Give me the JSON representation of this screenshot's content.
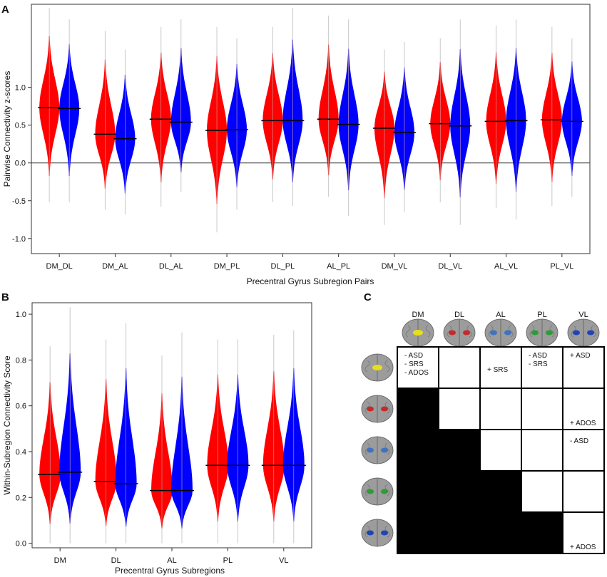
{
  "chart_data": [
    {
      "panel": "A",
      "type": "violin",
      "title": "",
      "xlabel": "Precentral Gyrus Subregion Pairs",
      "ylabel": "Pairwise Connectivity z-scores",
      "ylim": [
        -1.2,
        2.1
      ],
      "yticks": [
        "-1.0",
        "-0.5",
        "0.0",
        "0.5",
        "1.0"
      ],
      "ytick_values": [
        -1.0,
        -0.5,
        0.0,
        0.5,
        1.0
      ],
      "reference_line": 0.0,
      "categories": [
        "DM_DL",
        "DM_AL",
        "DL_AL",
        "DM_PL",
        "DL_PL",
        "AL_PL",
        "DM_VL",
        "DL_VL",
        "AL_VL",
        "PL_VL"
      ],
      "series": [
        {
          "name": "red",
          "color": "#ff0000",
          "medians": [
            0.73,
            0.38,
            0.58,
            0.43,
            0.56,
            0.58,
            0.46,
            0.52,
            0.55,
            0.57
          ],
          "mins": [
            -0.52,
            -0.62,
            -0.58,
            -0.92,
            -0.52,
            -0.45,
            -0.82,
            -0.52,
            -0.6,
            -0.57
          ],
          "maxs": [
            2.05,
            1.75,
            1.8,
            1.8,
            1.8,
            1.95,
            1.5,
            1.65,
            1.82,
            1.8
          ]
        },
        {
          "name": "blue",
          "color": "#0000ff",
          "medians": [
            0.72,
            0.32,
            0.54,
            0.44,
            0.56,
            0.51,
            0.4,
            0.49,
            0.56,
            0.55
          ],
          "mins": [
            -0.52,
            -0.68,
            -0.38,
            -0.62,
            -0.57,
            -0.7,
            -0.65,
            -0.82,
            -0.75,
            -0.45
          ],
          "maxs": [
            1.9,
            1.5,
            1.9,
            1.65,
            2.05,
            1.9,
            1.6,
            1.9,
            1.9,
            1.65
          ]
        }
      ]
    },
    {
      "panel": "B",
      "type": "violin",
      "title": "",
      "xlabel": "Precentral Gyrus Subregions",
      "ylabel": "Within-Subregion Connectivity Score",
      "ylim": [
        -0.02,
        1.05
      ],
      "yticks": [
        "0.0",
        "0.2",
        "0.4",
        "0.6",
        "0.8",
        "1.0"
      ],
      "ytick_values": [
        0.0,
        0.2,
        0.4,
        0.6,
        0.8,
        1.0
      ],
      "categories": [
        "DM",
        "DL",
        "AL",
        "PL",
        "VL"
      ],
      "series": [
        {
          "name": "red",
          "color": "#ff0000",
          "medians": [
            0.3,
            0.27,
            0.23,
            0.34,
            0.34
          ],
          "mins": [
            0.0,
            0.0,
            0.0,
            0.0,
            0.0
          ],
          "maxs": [
            0.86,
            0.89,
            0.82,
            0.89,
            0.91
          ]
        },
        {
          "name": "blue",
          "color": "#0000ff",
          "medians": [
            0.31,
            0.26,
            0.23,
            0.34,
            0.34
          ],
          "mins": [
            0.0,
            0.0,
            0.0,
            0.0,
            0.0
          ],
          "maxs": [
            1.03,
            0.96,
            0.92,
            0.89,
            0.93
          ]
        }
      ]
    }
  ],
  "panels": {
    "a": "A",
    "b": "B",
    "c": "C"
  },
  "matrix": {
    "columns": [
      "DM",
      "DL",
      "AL",
      "PL",
      "VL"
    ],
    "brain_colors": [
      "#e6df1a",
      "#c42a2a",
      "#3f72c0",
      "#2f9a38",
      "#2143b5"
    ],
    "cells": [
      [
        [
          "- ASD",
          "- SRS",
          "- ADOS"
        ],
        [],
        [
          "+ SRS"
        ],
        [
          "- ASD",
          "- SRS"
        ],
        [
          "+ ASD"
        ]
      ],
      [
        null,
        [],
        [],
        [],
        [
          "+ ADOS"
        ]
      ],
      [
        null,
        null,
        [],
        [],
        [
          "- ASD"
        ]
      ],
      [
        null,
        null,
        null,
        [],
        []
      ],
      [
        null,
        null,
        null,
        null,
        [
          "+ ADOS"
        ]
      ]
    ]
  }
}
